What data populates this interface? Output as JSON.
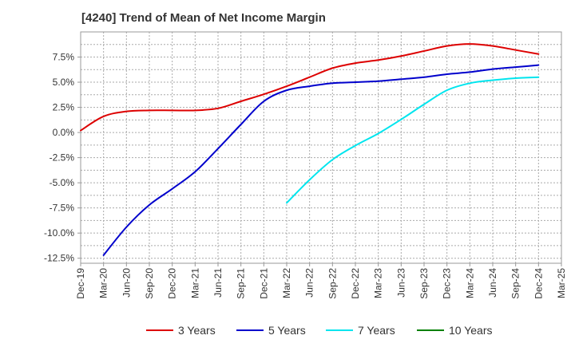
{
  "chart_data": {
    "type": "line",
    "title": "[4240]  Trend of Mean of Net Income Margin",
    "xlabel": "",
    "ylabel": "",
    "x_tick_labels": [
      "Dec-19",
      "Mar-20",
      "Jun-20",
      "Sep-20",
      "Dec-20",
      "Mar-21",
      "Jun-21",
      "Sep-21",
      "Dec-21",
      "Mar-22",
      "Jun-22",
      "Sep-22",
      "Dec-22",
      "Mar-23",
      "Jun-23",
      "Sep-23",
      "Dec-23",
      "Mar-24",
      "Jun-24",
      "Sep-24",
      "Dec-24",
      "Mar-25"
    ],
    "y_tick_labels": [
      "7.5%",
      "5.0%",
      "2.5%",
      "0.0%",
      "-2.5%",
      "-5.0%",
      "-7.5%",
      "-10.0%",
      "-12.5%"
    ],
    "y_ticks": [
      7.5,
      5.0,
      2.5,
      0.0,
      -2.5,
      -5.0,
      -7.5,
      -10.0,
      -12.5
    ],
    "ylim": [
      -13.0,
      10.0
    ],
    "grid": true,
    "legend_position": "bottom",
    "series": [
      {
        "name": "3 Years",
        "color": "#dd0000",
        "x": [
          "Dec-19",
          "Mar-20",
          "Jun-20",
          "Sep-20",
          "Dec-20",
          "Mar-21",
          "Jun-21",
          "Sep-21",
          "Dec-21",
          "Mar-22",
          "Jun-22",
          "Sep-22",
          "Dec-22",
          "Mar-23",
          "Jun-23",
          "Sep-23",
          "Dec-23",
          "Mar-24",
          "Jun-24",
          "Sep-24",
          "Dec-24"
        ],
        "values": [
          0.2,
          1.6,
          2.1,
          2.2,
          2.2,
          2.2,
          2.4,
          3.1,
          3.8,
          4.6,
          5.5,
          6.4,
          6.9,
          7.2,
          7.6,
          8.1,
          8.6,
          8.8,
          8.6,
          8.2,
          7.8
        ]
      },
      {
        "name": "5 Years",
        "color": "#0000cc",
        "x": [
          "Mar-20",
          "Jun-20",
          "Sep-20",
          "Dec-20",
          "Mar-21",
          "Jun-21",
          "Sep-21",
          "Dec-21",
          "Mar-22",
          "Jun-22",
          "Sep-22",
          "Dec-22",
          "Mar-23",
          "Jun-23",
          "Sep-23",
          "Dec-23",
          "Mar-24",
          "Jun-24",
          "Sep-24",
          "Dec-24"
        ],
        "values": [
          -12.2,
          -9.4,
          -7.2,
          -5.6,
          -3.9,
          -1.6,
          0.8,
          3.1,
          4.2,
          4.6,
          4.9,
          5.0,
          5.1,
          5.3,
          5.5,
          5.8,
          6.0,
          6.3,
          6.5,
          6.7
        ]
      },
      {
        "name": "7 Years",
        "color": "#00e5ee",
        "x": [
          "Mar-22",
          "Jun-22",
          "Sep-22",
          "Dec-22",
          "Mar-23",
          "Jun-23",
          "Sep-23",
          "Dec-23",
          "Mar-24",
          "Jun-24",
          "Sep-24",
          "Dec-24"
        ],
        "values": [
          -7.0,
          -4.7,
          -2.7,
          -1.3,
          -0.1,
          1.3,
          2.8,
          4.2,
          4.9,
          5.2,
          5.4,
          5.5
        ]
      },
      {
        "name": "10 Years",
        "color": "#008000",
        "x": [],
        "values": []
      }
    ]
  }
}
